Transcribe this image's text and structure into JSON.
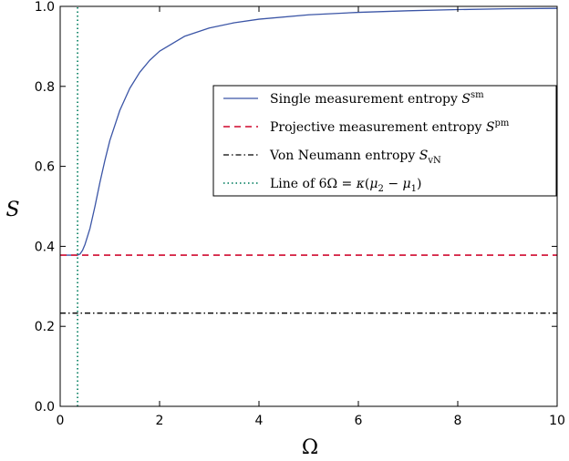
{
  "chart_data": {
    "type": "line",
    "xlabel": "Ω",
    "ylabel": "S",
    "xlim": [
      0,
      10
    ],
    "ylim": [
      0.0,
      1.0
    ],
    "x_ticks": [
      "0",
      "2",
      "4",
      "6",
      "8",
      "10"
    ],
    "y_ticks": [
      "0.0",
      "0.2",
      "0.4",
      "0.6",
      "0.8",
      "1.0"
    ],
    "grid": false,
    "legend_position": "center-right",
    "series": [
      {
        "name": "Single measurement entropy S^sm",
        "style": "solid",
        "color": "#3b55a6",
        "x": [
          0,
          0.35,
          0.4,
          0.45,
          0.5,
          0.6,
          0.7,
          0.8,
          0.9,
          1.0,
          1.2,
          1.4,
          1.6,
          1.8,
          2.0,
          2.5,
          3.0,
          3.5,
          4.0,
          5.0,
          6.0,
          7.0,
          8.0,
          9.0,
          10.0
        ],
        "y": [
          0.378,
          0.378,
          0.381,
          0.39,
          0.405,
          0.445,
          0.5,
          0.56,
          0.615,
          0.665,
          0.74,
          0.795,
          0.835,
          0.865,
          0.888,
          0.925,
          0.946,
          0.959,
          0.968,
          0.979,
          0.985,
          0.989,
          0.992,
          0.994,
          0.995
        ]
      },
      {
        "name": "Projective measurement entropy S^pm",
        "style": "dashed",
        "color": "#d62a4a",
        "x": [
          0,
          10
        ],
        "y": [
          0.378,
          0.378
        ]
      },
      {
        "name": "Von Neumann entropy S_vN",
        "style": "dashdot",
        "color": "#000000",
        "x": [
          0,
          10
        ],
        "y": [
          0.233,
          0.233
        ]
      },
      {
        "name": "Line of 6Ω = κ(μ2 − μ1)",
        "style": "dotted",
        "color": "#1a8a6e",
        "x": [
          0.35,
          0.35
        ],
        "y": [
          0.0,
          1.0
        ]
      }
    ],
    "legend": {
      "single": {
        "text": "Single measurement entropy ",
        "sym": "S",
        "sup": "sm"
      },
      "projective": {
        "text": "Projective measurement entropy ",
        "sym": "S",
        "sup": "pm"
      },
      "vonneumann": {
        "text": "Von Neumann entropy ",
        "sym": "S",
        "sub": "vN"
      },
      "line": {
        "pre": "Line of 6Ω = ",
        "kappa": "κ",
        "open": "(",
        "mu": "μ",
        "sub2": "2",
        "minus": " − ",
        "sub1": "1",
        "close": ")"
      }
    }
  }
}
